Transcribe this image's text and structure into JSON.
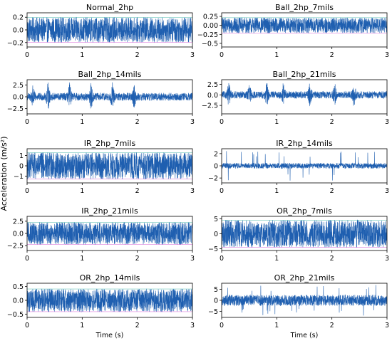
{
  "figure": {
    "ylabel": "Acceleration (m/s²)",
    "xlabel": "Time (s)",
    "colors": {
      "signal": "#1f5fb0",
      "signal_dark": "#283f9c",
      "magenta": "#d04ad0",
      "teal": "#33b0a0"
    }
  },
  "chart_data": [
    {
      "type": "line",
      "title": "Normal_2hp",
      "x_range": [
        0,
        3
      ],
      "xticks": [
        0,
        1,
        2,
        3
      ],
      "ylim": [
        -0.27,
        0.27
      ],
      "yticks": [
        -0.2,
        0.0,
        0.2
      ],
      "ytick_labels": [
        "−0.2",
        "0.0",
        "0.2"
      ],
      "amplitude": 0.2,
      "peak": 0.25,
      "burst": false,
      "xlabel": ""
    },
    {
      "type": "line",
      "title": "Ball_2hp_7mils",
      "x_range": [
        0,
        3
      ],
      "xticks": [
        0,
        1,
        2,
        3
      ],
      "ylim": [
        -0.6,
        0.35
      ],
      "yticks": [
        -0.5,
        -0.25,
        0.0,
        0.25
      ],
      "ytick_labels": [
        "−0.5",
        "−0.25",
        "0.00",
        "0.25"
      ],
      "amplitude": 0.22,
      "peak": 0.5,
      "burst": false,
      "xlabel": ""
    },
    {
      "type": "line",
      "title": "Ball_2hp_14mils",
      "x_range": [
        0,
        3
      ],
      "xticks": [
        0,
        1,
        2,
        3
      ],
      "ylim": [
        -3.6,
        3.6
      ],
      "yticks": [
        -2.5,
        0.0,
        2.5
      ],
      "ytick_labels": [
        "−2.5",
        "0.0",
        "2.5"
      ],
      "amplitude": 0.3,
      "peak": 3.3,
      "burst": true,
      "bursts": [
        0.1,
        0.38,
        0.77,
        1.16,
        1.55,
        1.94
      ],
      "xlabel": ""
    },
    {
      "type": "line",
      "title": "Ball_2hp_21mils",
      "x_range": [
        0,
        3
      ],
      "xticks": [
        0,
        1,
        2,
        3
      ],
      "ylim": [
        -4.5,
        3.6
      ],
      "yticks": [
        -2.5,
        0.0,
        2.5
      ],
      "ytick_labels": [
        "−2.5",
        "0.0",
        "2.5"
      ],
      "amplitude": 0.35,
      "peak": 3.4,
      "burst": true,
      "bursts": [
        0.13,
        0.5,
        0.82,
        1.12,
        1.6,
        2.05,
        2.4
      ],
      "xlabel": ""
    },
    {
      "type": "line",
      "title": "IR_2hp_7mils",
      "x_range": [
        0,
        3
      ],
      "xticks": [
        0,
        1,
        2,
        3
      ],
      "ylim": [
        -1.65,
        1.65
      ],
      "yticks": [
        -1,
        0,
        1
      ],
      "ytick_labels": [
        "−1",
        "0",
        "1"
      ],
      "amplitude": 1.3,
      "peak": 1.5,
      "burst": false,
      "xlabel": ""
    },
    {
      "type": "line",
      "title": "IR_2hp_14mils",
      "x_range": [
        0,
        3
      ],
      "xticks": [
        0,
        1,
        2,
        3
      ],
      "ylim": [
        -2.8,
        2.8
      ],
      "yticks": [
        -2,
        0,
        2
      ],
      "ytick_labels": [
        "−2",
        "0",
        "2"
      ],
      "amplitude": 0.45,
      "peak": 2.5,
      "burst": false,
      "spiky": true,
      "xlabel": ""
    },
    {
      "type": "line",
      "title": "IR_2hp_21mils",
      "x_range": [
        0,
        3
      ],
      "xticks": [
        0,
        1,
        2,
        3
      ],
      "ylim": [
        -3.5,
        3.5
      ],
      "yticks": [
        -2.5,
        0.0,
        2.5
      ],
      "ytick_labels": [
        "−2.5",
        "0.0",
        "2.5"
      ],
      "amplitude": 2.3,
      "peak": 3.0,
      "burst": false,
      "xlabel": ""
    },
    {
      "type": "line",
      "title": "OR_2hp_7mils",
      "x_range": [
        0,
        3
      ],
      "xticks": [
        0,
        1,
        2,
        3
      ],
      "ylim": [
        -5.6,
        5.8
      ],
      "yticks": [
        -5,
        0,
        5
      ],
      "ytick_labels": [
        "−5",
        "0",
        "5"
      ],
      "amplitude": 4.6,
      "peak": 5.2,
      "burst": false,
      "xlabel": ""
    },
    {
      "type": "line",
      "title": "OR_2hp_14mils",
      "x_range": [
        0,
        3
      ],
      "xticks": [
        0,
        1,
        2,
        3
      ],
      "ylim": [
        -0.62,
        0.62
      ],
      "yticks": [
        -0.5,
        0.0,
        0.5
      ],
      "ytick_labels": [
        "−0.5",
        "0.0",
        "0.5"
      ],
      "amplitude": 0.42,
      "peak": 0.55,
      "burst": false,
      "xlabel": "Time (s)"
    },
    {
      "type": "line",
      "title": "OR_2hp_21mils",
      "x_range": [
        0,
        3
      ],
      "xticks": [
        0,
        1,
        2,
        3
      ],
      "ylim": [
        -7.8,
        7.8
      ],
      "yticks": [
        -5,
        0,
        5
      ],
      "ytick_labels": [
        "−5",
        "0",
        "5"
      ],
      "amplitude": 2.5,
      "peak": 7.0,
      "burst": false,
      "spiky": true,
      "xlabel": "Time (s)"
    }
  ]
}
